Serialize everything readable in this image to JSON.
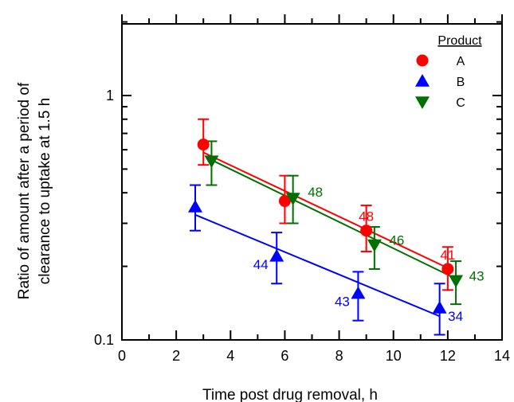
{
  "chart_data": {
    "type": "scatter",
    "xlabel": "Time post drug removal, h",
    "ylabel_lines": [
      "Ratio of amount after a period of",
      "clearance to uptake at 1.5 h"
    ],
    "xlim": [
      0,
      14
    ],
    "ylim": [
      0.1,
      2
    ],
    "yscale": "log",
    "x_ticks": [
      0,
      2,
      4,
      6,
      8,
      10,
      12,
      14
    ],
    "x_tick_labels": [
      "0",
      "2",
      "4",
      "6",
      "8",
      "10",
      "12",
      "14"
    ],
    "y_major_ticks": [
      0.1,
      1
    ],
    "y_tick_labels": [
      "0.1",
      "1"
    ],
    "legend_title": "Product",
    "legend_position": "top-right",
    "series": [
      {
        "name": "A",
        "color": "#ff0000",
        "marker": "circle",
        "x": [
          3,
          6,
          9,
          12
        ],
        "y": [
          0.63,
          0.37,
          0.28,
          0.195
        ],
        "err_low": [
          0.52,
          0.3,
          0.23,
          0.16
        ],
        "err_high": [
          0.8,
          0.47,
          0.355,
          0.24
        ],
        "fit": {
          "x": [
            3,
            12
          ],
          "y": [
            0.585,
            0.197
          ]
        },
        "labels": [
          "",
          "",
          "48",
          "41"
        ]
      },
      {
        "name": "B",
        "color": "#0000ff",
        "marker": "triangle-up",
        "x": [
          2.7,
          5.7,
          8.7,
          11.7
        ],
        "y": [
          0.35,
          0.22,
          0.155,
          0.135
        ],
        "err_low": [
          0.28,
          0.17,
          0.12,
          0.105
        ],
        "err_high": [
          0.43,
          0.275,
          0.19,
          0.17
        ],
        "fit": {
          "x": [
            2.7,
            11.7
          ],
          "y": [
            0.325,
            0.125
          ]
        },
        "labels": [
          "",
          "44",
          "43",
          "34"
        ]
      },
      {
        "name": "C",
        "color": "#007000",
        "marker": "triangle-down",
        "x": [
          3.3,
          6.3,
          9.3,
          12.3
        ],
        "y": [
          0.54,
          0.38,
          0.245,
          0.175
        ],
        "err_low": [
          0.43,
          0.3,
          0.195,
          0.14
        ],
        "err_high": [
          0.65,
          0.47,
          0.29,
          0.21
        ],
        "fit": {
          "x": [
            3.3,
            12.3
          ],
          "y": [
            0.545,
            0.178
          ]
        },
        "labels": [
          "",
          "48",
          "46",
          "43"
        ]
      }
    ]
  }
}
